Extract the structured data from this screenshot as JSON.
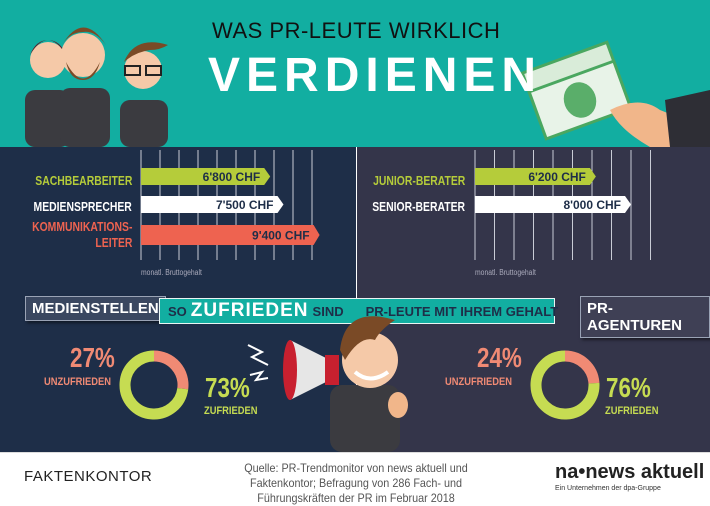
{
  "header": {
    "title_line1": "WAS PR-LEUTE WIRKLICH",
    "title_line2": "VERDIENEN"
  },
  "colors": {
    "teal": "#12aea1",
    "green": "#b5cc3a",
    "white": "#ffffff",
    "red": "#ee6350",
    "salmon": "#f08a74",
    "navy": "#1e2e48",
    "slate": "#34354a"
  },
  "chart_data": [
    {
      "type": "bar",
      "orientation": "horizontal",
      "group": "Medienstellen",
      "categories": [
        "SACHBEARBEITER",
        "MEDIENSPRECHER",
        "KOMMUNIKATIONS-\nLEITER"
      ],
      "values": [
        6800,
        7500,
        9400
      ],
      "value_labels": [
        "6'800 CHF",
        "7'500 CHF",
        "9'400 CHF"
      ],
      "xlabel": "monatl. Bruttogehalt",
      "unit": "CHF",
      "xlim": [
        0,
        10000
      ],
      "grid": true,
      "bar_colors": [
        "#b5cc3a",
        "#ffffff",
        "#ee6350"
      ]
    },
    {
      "type": "bar",
      "orientation": "horizontal",
      "group": "PR-Agenturen",
      "categories": [
        "JUNIOR-BERATER",
        "SENIOR-BERATER"
      ],
      "values": [
        6200,
        8000
      ],
      "value_labels": [
        "6'200 CHF",
        "8'000 CHF"
      ],
      "xlabel": "monatl. Bruttogehalt",
      "unit": "CHF",
      "xlim": [
        0,
        10000
      ],
      "grid": true,
      "bar_colors": [
        "#b5cc3a",
        "#ffffff"
      ]
    },
    {
      "type": "pie",
      "donut": true,
      "group": "MEDIENSTELLEN",
      "slices": [
        {
          "label": "UNZUFRIEDEN",
          "value": 27,
          "text": "27%",
          "color": "#f08a74"
        },
        {
          "label": "ZUFRIEDEN",
          "value": 73,
          "text": "73%",
          "color": "#c6dc52"
        }
      ]
    },
    {
      "type": "pie",
      "donut": true,
      "group": "PR-AGENTUREN",
      "slices": [
        {
          "label": "UNZUFRIEDEN",
          "value": 24,
          "text": "24%",
          "color": "#f08a74"
        },
        {
          "label": "ZUFRIEDEN",
          "value": 76,
          "text": "76%",
          "color": "#c6dc52"
        }
      ]
    }
  ],
  "sections": {
    "left": "MEDIENSTELLEN",
    "right": "PR-AGENTUREN"
  },
  "banner": {
    "pre": "SO",
    "big": "ZUFRIEDEN",
    "mid": "SIND",
    "post": "PR-LEUTE MIT IHREM GEHALT"
  },
  "footer": {
    "logo_left": "FAKTENKONTOR",
    "source": "Quelle: PR-Trendmonitor von news aktuell und Faktenkontor; Befragung von 286 Fach- und Führungskräften der PR im Februar 2018",
    "logo_right": "na•news aktuell",
    "logo_right_sub": "Ein Unternehmen der dpa-Gruppe"
  }
}
